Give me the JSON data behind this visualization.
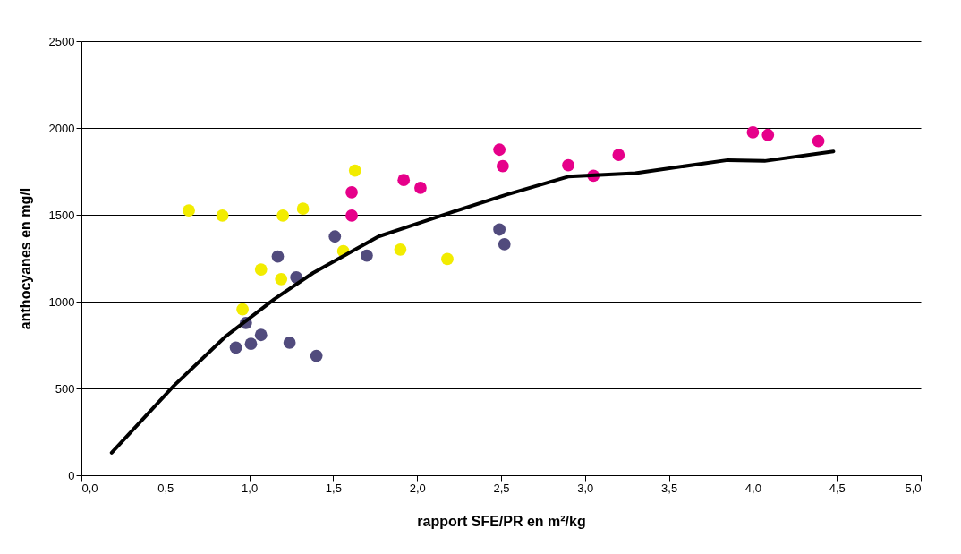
{
  "chart_data": {
    "type": "scatter",
    "xlabel": "rapport SFE/PR en m²/kg",
    "ylabel": "anthocyanes en mg/l",
    "series": [
      {
        "color": "#f2ec00",
        "x": [
          0.64,
          0.84,
          1.2,
          1.32,
          1.63,
          1.07,
          1.19,
          0.96,
          1.56,
          1.9,
          2.18
        ],
        "values": [
          1525,
          1495,
          1495,
          1535,
          1755,
          1185,
          1130,
          955,
          1290,
          1300,
          1245
        ]
      },
      {
        "color": "#e6008a",
        "x": [
          1.61,
          1.61,
          1.92,
          2.02,
          2.49,
          2.51,
          2.9,
          3.05,
          3.2,
          4.0,
          4.09,
          4.39
        ],
        "values": [
          1630,
          1495,
          1700,
          1655,
          1875,
          1780,
          1785,
          1725,
          1845,
          1975,
          1960,
          1925
        ]
      },
      {
        "color": "#514b7d",
        "x": [
          1.17,
          1.28,
          1.51,
          1.7,
          2.49,
          2.52,
          0.92,
          0.98,
          1.07,
          1.01,
          1.24,
          1.4
        ],
        "values": [
          1260,
          1140,
          1375,
          1265,
          1415,
          1330,
          735,
          877,
          808,
          757,
          763,
          688
        ]
      },
      {
        "type": "line",
        "marker": "none",
        "line_style": "solid",
        "color": "#000000",
        "x": [
          0.18,
          0.55,
          0.86,
          1.15,
          1.38,
          1.77,
          2.19,
          2.53,
          2.9,
          3.3,
          3.85,
          4.07,
          4.48
        ],
        "values": [
          130,
          515,
          800,
          1015,
          1165,
          1375,
          1510,
          1615,
          1720,
          1740,
          1815,
          1810,
          1865
        ]
      }
    ],
    "marker": "circle",
    "grid": "y",
    "xlim": [
      0,
      5
    ],
    "ylim": [
      0,
      2500
    ],
    "xticks": [
      {
        "value": 0,
        "label": "0,0"
      },
      {
        "value": 0.5,
        "label": "0,5"
      },
      {
        "value": 1,
        "label": "1,0"
      },
      {
        "value": 1.5,
        "label": "1,5"
      },
      {
        "value": 2,
        "label": "2,0"
      },
      {
        "value": 2.5,
        "label": "2,5"
      },
      {
        "value": 3,
        "label": "3,0"
      },
      {
        "value": 3.5,
        "label": "3,5"
      },
      {
        "value": 4,
        "label": "4,0"
      },
      {
        "value": 4.5,
        "label": "4,5"
      },
      {
        "value": 5,
        "label": "5,0"
      }
    ],
    "yticks": [
      0,
      500,
      1000,
      1500,
      2000,
      2500
    ]
  }
}
